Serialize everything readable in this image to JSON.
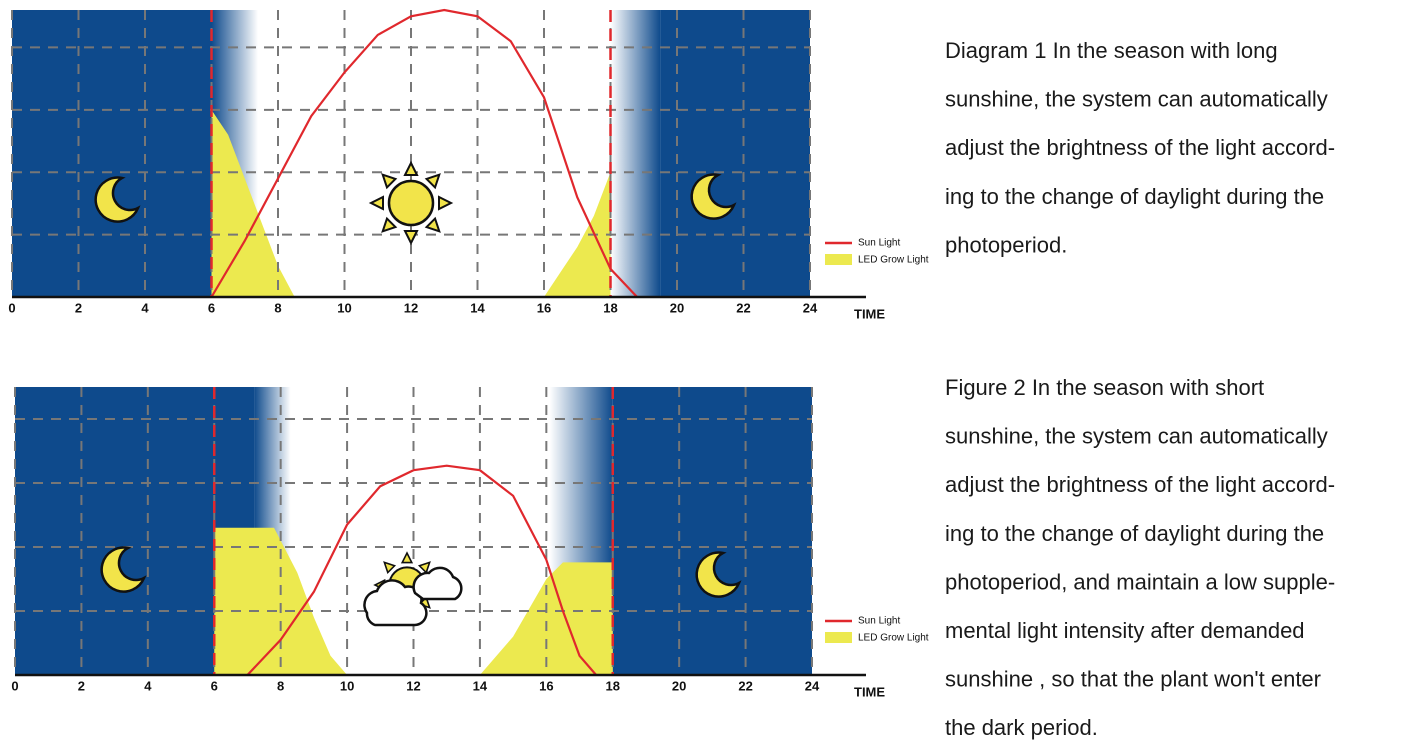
{
  "chart_data": [
    {
      "type": "line",
      "x_label": "TIME",
      "xlim": [
        0,
        24
      ],
      "xticks": [
        0,
        2,
        4,
        6,
        8,
        10,
        12,
        14,
        16,
        18,
        20,
        22,
        24
      ],
      "ylim": [
        0,
        4.6
      ],
      "ygrid": [
        1,
        2,
        3,
        4
      ],
      "markers": [
        6,
        18
      ],
      "night": [
        {
          "from": 0,
          "to": 6,
          "fade": 7.4
        },
        {
          "from": 19.5,
          "to": 24,
          "fade": 18
        }
      ],
      "series": [
        {
          "name": "Sun Light",
          "color": "#e0282d",
          "x": [
            6,
            7,
            8,
            9,
            10,
            11,
            12,
            13,
            14,
            15,
            16,
            17,
            18,
            18.8
          ],
          "values": [
            0,
            0.9,
            1.9,
            2.9,
            3.6,
            4.2,
            4.5,
            4.6,
            4.5,
            4.1,
            3.2,
            1.6,
            0.45,
            0
          ]
        },
        {
          "name": "LED Grow Light",
          "color": "#ece94f",
          "x": [
            6,
            6,
            6.5,
            7,
            7.5,
            8,
            8.5,
            12,
            16,
            16.5,
            17,
            17.5,
            18,
            18
          ],
          "values": [
            0,
            3.0,
            2.6,
            1.9,
            1.2,
            0.5,
            0,
            null,
            0,
            0.4,
            0.8,
            1.3,
            2.0,
            0
          ]
        }
      ],
      "caption_lines": [
        "Diagram 1 In the season with long",
        "sunshine, the system can automatically",
        "adjust the brightness of the light accord-",
        "ing to the change of daylight during the",
        "photoperiod."
      ]
    },
    {
      "type": "line",
      "x_label": "TIME",
      "xlim": [
        0,
        24
      ],
      "xticks": [
        0,
        2,
        4,
        6,
        8,
        10,
        12,
        14,
        16,
        18,
        20,
        22,
        24
      ],
      "ylim": [
        0,
        4.5
      ],
      "ygrid": [
        1,
        2,
        3,
        4
      ],
      "markers": [
        6,
        18
      ],
      "night": [
        {
          "from": 0,
          "to": 7.2,
          "fade": 8.3
        },
        {
          "from": 18,
          "to": 24,
          "fade": 16.1
        }
      ],
      "series": [
        {
          "name": "Sun Light",
          "color": "#e0282d",
          "x": [
            7,
            8,
            9,
            10,
            11,
            12,
            13,
            14,
            15,
            16,
            16.5,
            17,
            17.5
          ],
          "values": [
            0,
            0.55,
            1.3,
            2.35,
            2.95,
            3.2,
            3.27,
            3.2,
            2.8,
            1.8,
            1.0,
            0.3,
            0
          ]
        },
        {
          "name": "LED Grow Light",
          "color": "#ece94f",
          "x": [
            6,
            6,
            7.8,
            8.5,
            9,
            9.5,
            10,
            12,
            14,
            15,
            16,
            16.5,
            18,
            18
          ],
          "values": [
            0,
            2.3,
            2.3,
            1.6,
            0.9,
            0.3,
            0,
            null,
            0,
            0.6,
            1.5,
            1.76,
            1.76,
            0
          ]
        }
      ],
      "caption_lines": [
        "Figure 2 In the season with short",
        "sunshine, the system can automatically",
        "adjust the brightness of the light accord-",
        "ing to the change of daylight during the",
        "photoperiod, and maintain a low supple-",
        "mental light intensity after demanded",
        "sunshine , so that the plant won't enter",
        "the dark period."
      ]
    }
  ]
}
